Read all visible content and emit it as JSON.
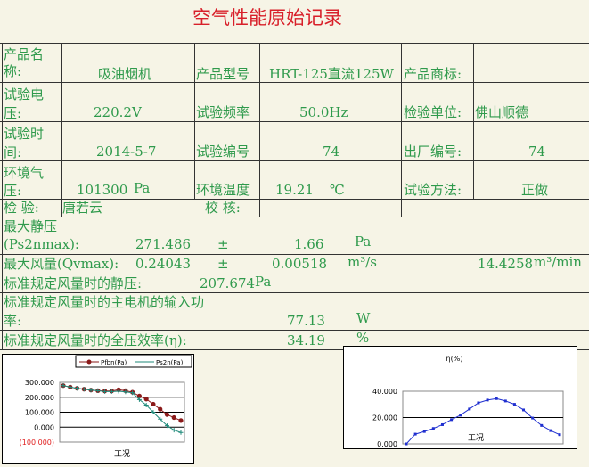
{
  "title": "空气性能原始记录",
  "info": {
    "product_name_label": "产品名称:",
    "product_name": "吸油烟机",
    "model_label": "产品型号",
    "model": "HRT-125直流125W",
    "brand_label": "产品商标:",
    "brand": "",
    "voltage_label": "试验电压:",
    "voltage": "220.2V",
    "freq_label": "试验频率",
    "freq": "50.0Hz",
    "unit_label": "检验单位:",
    "unit": "佛山顺德",
    "date_label": "试验时间:",
    "date": "2014-5-7",
    "test_no_label": "试验编号",
    "test_no": "74",
    "factory_no_label": "出厂编号:",
    "factory_no": "74",
    "pressure_label": "环境气压:",
    "pressure": "101300",
    "pressure_unit": "Pa",
    "temp_label": "环境温度",
    "temp": "19.21",
    "temp_unit": "℃",
    "method_label": "试验方法:",
    "method": "正做",
    "inspector_label": "检 验:",
    "inspector": "唐若云",
    "checker_label": "校 核:",
    "checker": ""
  },
  "results": {
    "ps_label1": "最大静压",
    "ps_label2": "(Ps2nmax):",
    "ps": "271.486",
    "pm": "±",
    "ps_err": "1.66",
    "ps_unit": "Pa",
    "qv_label": "最大风量(Qvmax):",
    "qv": "0.24043",
    "qv_err": "0.00518",
    "qv_unit": "m³/s",
    "qv_min": "14.4258",
    "qv_min_unit": "m³/min",
    "std_ps_label": "标准规定风量时的静压:",
    "std_ps": "207.674",
    "std_ps_unit": "Pa",
    "power_label1": "标准规定风量时的主电机的输入功",
    "power_label2": "率:",
    "power": "77.13",
    "power_unit": "W",
    "eff_label": "标准规定风量时的全压效率(η):",
    "eff": "34.19",
    "eff_unit": "%"
  },
  "chart_data": [
    {
      "type": "line",
      "xlabel": "工况",
      "ylim": [
        -100,
        300
      ],
      "yticks": [
        "300.000",
        "200.000",
        "100.000",
        "0.000",
        "(100.000)"
      ],
      "negative_tick_color": "#e02020",
      "legend": "top",
      "grid": true,
      "series": [
        {
          "name": "Pfbn(Pa)",
          "color": "#8b1a1a",
          "values": [
            278,
            268,
            260,
            254,
            248,
            244,
            242,
            242,
            250,
            244,
            234,
            208,
            188,
            154,
            120,
            84,
            64,
            44
          ]
        },
        {
          "name": "Ps2n(Pa)",
          "color": "#1f8a7a",
          "values": [
            278,
            268,
            260,
            254,
            248,
            244,
            238,
            238,
            240,
            236,
            230,
            184,
            148,
            100,
            54,
            10,
            -20,
            -36
          ]
        }
      ]
    },
    {
      "type": "line",
      "title": "η(%)",
      "xlabel": "工况",
      "ylim": [
        0,
        40
      ],
      "yticks": [
        "40.000",
        "20.000",
        "0.000"
      ],
      "grid": true,
      "series": [
        {
          "color": "#2030d0",
          "values": [
            0,
            7.4,
            9.4,
            11.7,
            14.6,
            18.4,
            21.8,
            26.5,
            31.2,
            33.3,
            34.4,
            32.6,
            30.1,
            25.8,
            19.6,
            14,
            10.1,
            7
          ]
        }
      ]
    }
  ]
}
